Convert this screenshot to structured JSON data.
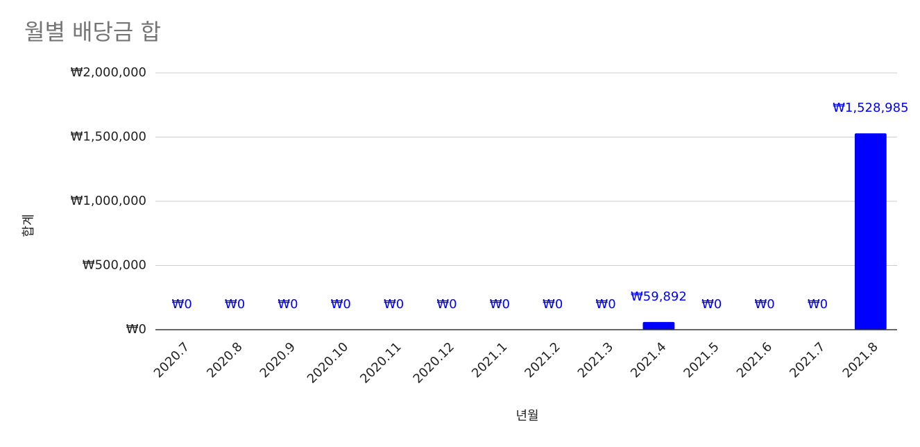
{
  "chart_data": {
    "type": "bar",
    "title": "월별 배당금 합",
    "x_label": "년월",
    "y_label": "합계",
    "categories": [
      "2020.7",
      "2020.8",
      "2020.9",
      "2020.10",
      "2020.11",
      "2020.12",
      "2021.1",
      "2021.2",
      "2021.3",
      "2021.4",
      "2021.5",
      "2021.6",
      "2021.7",
      "2021.8"
    ],
    "values": [
      0,
      0,
      0,
      0,
      0,
      0,
      0,
      0,
      0,
      59892,
      0,
      0,
      0,
      1528985
    ],
    "value_labels": [
      "₩0",
      "₩0",
      "₩0",
      "₩0",
      "₩0",
      "₩0",
      "₩0",
      "₩0",
      "₩0",
      "₩59,892",
      "₩0",
      "₩0",
      "₩0",
      "₩1,528,985"
    ],
    "color": "#0000ff",
    "ylim": [
      0,
      2000000
    ],
    "yticks": [
      {
        "value": 0,
        "label": "₩0"
      },
      {
        "value": 500000,
        "label": "₩500,000"
      },
      {
        "value": 1000000,
        "label": "₩1,000,000"
      },
      {
        "value": 1500000,
        "label": "₩1,500,000"
      },
      {
        "value": 2000000,
        "label": "₩2,000,000"
      }
    ],
    "grid": true
  }
}
